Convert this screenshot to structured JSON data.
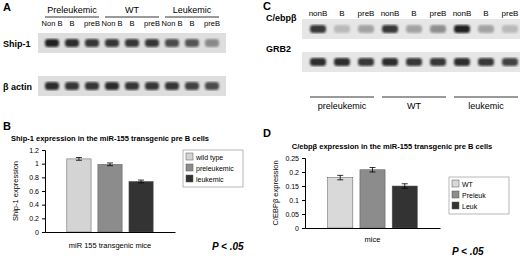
{
  "chart_data": [
    {
      "type": "bar",
      "title": "Ship-1 expression in the miR-155 transgenic pre B cells",
      "x_label": "miR 155 transgenic mice",
      "y_label": "Ship-1 expression",
      "annotations": [
        "B",
        "P < .05"
      ],
      "categories": [
        null
      ],
      "series": [
        {
          "name": "wild type",
          "color": "#d4d4d4",
          "values": [
            1.07
          ],
          "error": [
            0.02
          ]
        },
        {
          "name": "preleukemic",
          "color": "#8c8c8c",
          "values": [
            0.99
          ],
          "error": [
            0.02
          ]
        },
        {
          "name": "leukemic",
          "color": "#333333",
          "values": [
            0.74
          ],
          "error": [
            0.02
          ]
        }
      ],
      "ylim": [
        0,
        1.2
      ],
      "yticks": [
        0,
        0.2,
        0.4,
        0.6,
        0.8,
        1,
        1.2
      ],
      "grid": false,
      "legend": "right"
    },
    {
      "type": "bar",
      "title": "C/ebpβ expression in the miR-155 transgenic pre B cells",
      "x_label": "mice",
      "y_label": "C/EBPβ expression",
      "annotations": [
        "D",
        "P < .05"
      ],
      "categories": [
        null
      ],
      "series": [
        {
          "name": "WT",
          "color": "#d9d9d9",
          "values": [
            0.18
          ],
          "error": [
            0.008
          ]
        },
        {
          "name": "Preleuk",
          "color": "#8c8c8c",
          "values": [
            0.208
          ],
          "error": [
            0.008
          ]
        },
        {
          "name": "Leuk",
          "color": "#333333",
          "values": [
            0.15
          ],
          "error": [
            0.008
          ]
        }
      ],
      "ylim": [
        0,
        0.25
      ],
      "yticks": [
        0,
        0.05,
        0.1,
        0.15,
        0.2,
        0.25
      ],
      "grid": false,
      "legend": "right"
    }
  ],
  "blots": [
    {
      "annotations": [
        "A"
      ],
      "groups": [
        "Preleukemic",
        "WT",
        "Leukemic"
      ],
      "lanes": [
        "Non B",
        "B",
        "preB",
        "Non B",
        "B",
        "preB",
        "Non B",
        "B",
        "preB"
      ],
      "rows": [
        {
          "label": "Ship-1",
          "bands": [
            0.9,
            0.85,
            0.8,
            0.8,
            0.8,
            0.8,
            0.7,
            0.65,
            0.4
          ]
        },
        {
          "label": "β actin",
          "bands": [
            0.85,
            0.8,
            0.8,
            0.85,
            0.8,
            0.8,
            0.8,
            0.75,
            0.7
          ]
        }
      ]
    },
    {
      "annotations": [
        "C"
      ],
      "groups": [
        "preleukemic",
        "WT",
        "leukemic"
      ],
      "lanes": [
        "nonB",
        "B",
        "preB",
        "nonB",
        "B",
        "preB",
        "nonB",
        "B",
        "preB"
      ],
      "rows": [
        {
          "label": "C/ebpβ",
          "bands": [
            0.8,
            0.2,
            0.3,
            0.8,
            0.3,
            0.4,
            0.9,
            0.3,
            0.2
          ]
        },
        {
          "label": "GRB2",
          "bands": [
            0.85,
            0.85,
            0.8,
            0.85,
            0.8,
            0.8,
            0.85,
            0.8,
            0.75
          ]
        }
      ]
    }
  ]
}
